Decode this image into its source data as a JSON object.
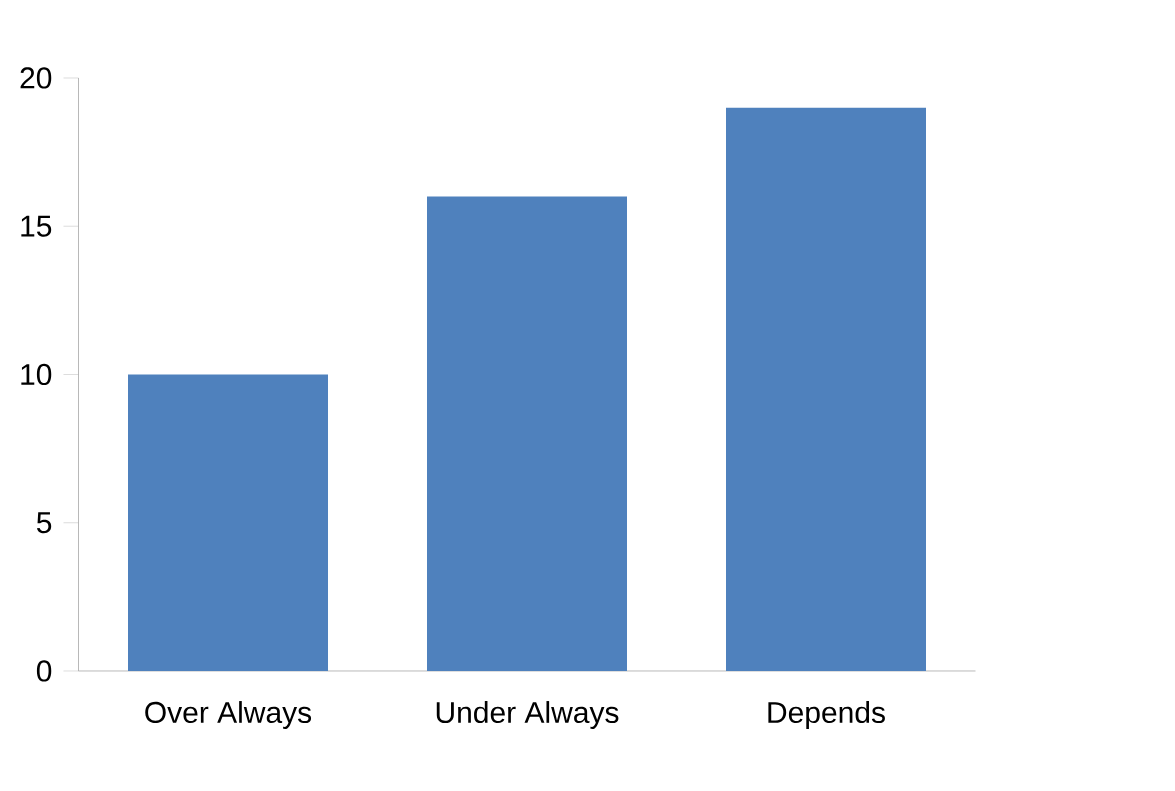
{
  "chart_data": {
    "type": "bar",
    "categories": [
      "Over Always",
      "Under Always",
      "Depends"
    ],
    "values": [
      10,
      16,
      19
    ],
    "color": "#4f81bd",
    "ylim": [
      0,
      20
    ],
    "yticks": [
      0,
      5,
      10,
      15,
      20
    ],
    "grid": false
  }
}
